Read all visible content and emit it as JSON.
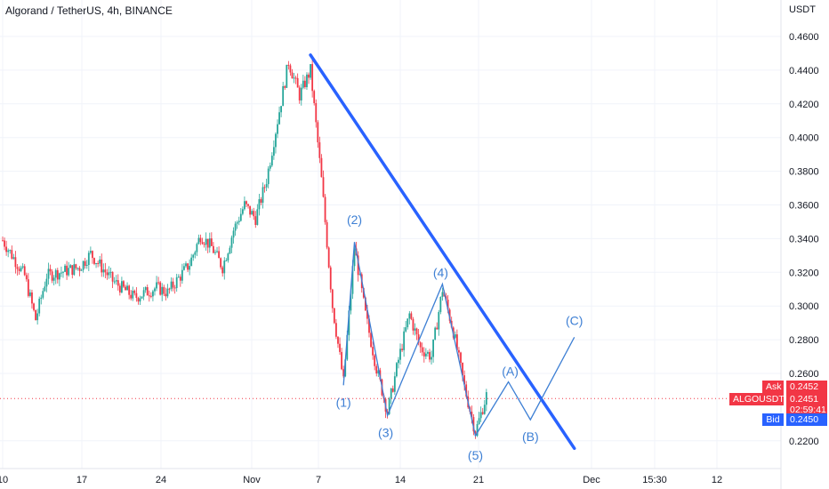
{
  "header": {
    "title": "Algorand / TetherUS, 4h, BINANCE"
  },
  "colors": {
    "up": "#26a69a",
    "down": "#f23645",
    "trendline": "#2962ff",
    "wave": "#3d7fd4",
    "axis_text": "#131722",
    "price_line": "#f23645"
  },
  "price_scale": {
    "unit_label": "USDT",
    "ticks": [
      "0.4600",
      "0.4400",
      "0.4200",
      "0.4000",
      "0.3800",
      "0.3600",
      "0.3400",
      "0.3200",
      "0.3000",
      "0.2800",
      "0.2600",
      "0.2200"
    ]
  },
  "time_scale": {
    "ticks": [
      "10",
      "17",
      "24",
      "Nov",
      "7",
      "14",
      "21",
      "Dec",
      "15:30",
      "12"
    ]
  },
  "labels": {
    "ask_label": "Ask",
    "ask_value": "0.2452",
    "symbol": "ALGOUSDT",
    "price": "0.2451",
    "countdown": "02:59:41",
    "bid_label": "Bid",
    "bid_value": "0.2450"
  },
  "chart_data": {
    "type": "candlestick",
    "title": "Algorand / TetherUS, 4h, BINANCE",
    "ylabel": "USDT",
    "ylim": [
      0.21,
      0.468
    ],
    "last_price": 0.2451,
    "price_path": [
      [
        "Oct 10",
        0.339
      ],
      [
        "Oct 12",
        0.318
      ],
      [
        "Oct 13",
        0.292
      ],
      [
        "Oct 14",
        0.318
      ],
      [
        "Oct 17",
        0.323
      ],
      [
        "Oct 18",
        0.331
      ],
      [
        "Oct 20",
        0.315
      ],
      [
        "Oct 22",
        0.305
      ],
      [
        "Oct 24",
        0.311
      ],
      [
        "Oct 25",
        0.308
      ],
      [
        "Oct 27",
        0.325
      ],
      [
        "Oct 28",
        0.342
      ],
      [
        "Oct 29",
        0.335
      ],
      [
        "Oct 30",
        0.323
      ],
      [
        "Oct 31",
        0.345
      ],
      [
        "Nov 1",
        0.36
      ],
      [
        "Nov 2",
        0.352
      ],
      [
        "Nov 3",
        0.375
      ],
      [
        "Nov 4",
        0.41
      ],
      [
        "Nov 5",
        0.445
      ],
      [
        "Nov 6",
        0.425
      ],
      [
        "Nov 7",
        0.44
      ],
      [
        "Nov 8",
        0.375
      ],
      [
        "Nov 9",
        0.3
      ],
      [
        "Nov 10",
        0.255
      ],
      [
        "Nov 11",
        0.335
      ],
      [
        "Nov 12",
        0.295
      ],
      [
        "Nov 13",
        0.263
      ],
      [
        "Nov 14",
        0.237
      ],
      [
        "Nov 15",
        0.268
      ],
      [
        "Nov 16",
        0.295
      ],
      [
        "Nov 17",
        0.275
      ],
      [
        "Nov 18",
        0.27
      ],
      [
        "Nov 19",
        0.31
      ],
      [
        "Nov 20",
        0.285
      ],
      [
        "Nov 21",
        0.252
      ],
      [
        "Nov 22",
        0.225
      ],
      [
        "Nov 23",
        0.247
      ]
    ],
    "trendline": {
      "from": [
        "Nov 7",
        0.449
      ],
      "to": [
        "Dec 1",
        0.2155
      ]
    },
    "wave_points": [
      {
        "label": "(1)",
        "date": "Nov 10",
        "price": 0.253
      },
      {
        "label": "(2)",
        "date": "Nov 11",
        "price": 0.338
      },
      {
        "label": "(3)",
        "date": "Nov 14",
        "price": 0.235
      },
      {
        "label": "(4)",
        "date": "Nov 19",
        "price": 0.313
      },
      {
        "label": "(5)",
        "date": "Nov 22",
        "price": 0.223
      },
      {
        "label": "(A)",
        "date": "Nov 25",
        "price": 0.255
      },
      {
        "label": "(B)",
        "date": "Nov 27",
        "price": 0.2325
      },
      {
        "label": "(C)",
        "date": "Dec 1",
        "price": 0.2815
      }
    ]
  }
}
